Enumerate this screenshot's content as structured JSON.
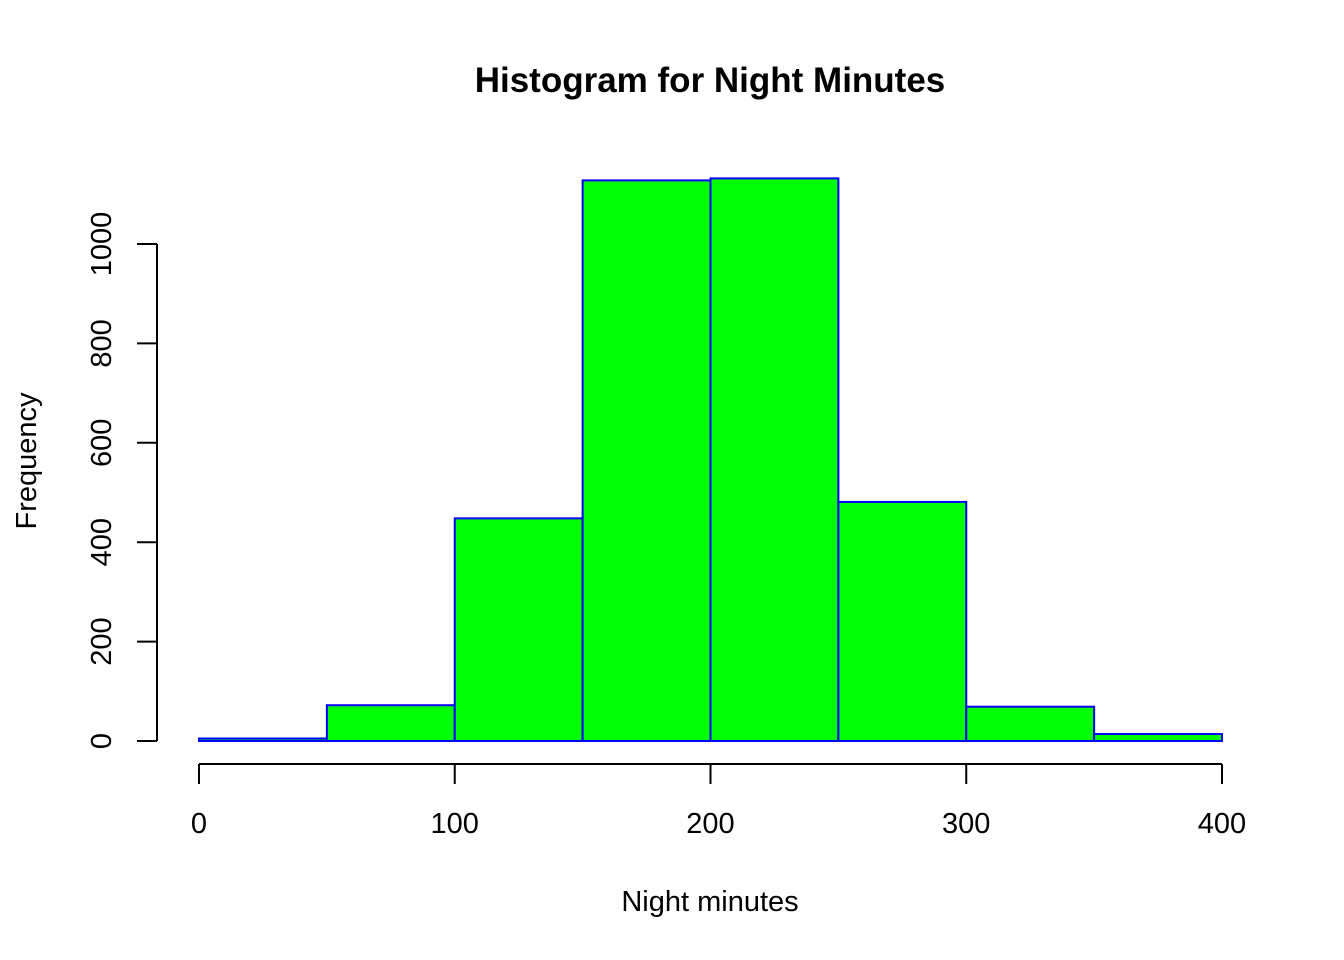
{
  "chart_data": {
    "type": "bar",
    "title": "Histogram for Night Minutes",
    "xlabel": "Night minutes",
    "ylabel": "Frequency",
    "bin_edges": [
      0,
      50,
      100,
      150,
      200,
      250,
      300,
      350,
      400
    ],
    "values": [
      5,
      72,
      448,
      1128,
      1132,
      481,
      69,
      14
    ],
    "xlim": [
      0,
      400
    ],
    "ylim": [
      0,
      1132
    ],
    "x_ticks": [
      0,
      100,
      200,
      300,
      400
    ],
    "y_ticks": [
      0,
      200,
      400,
      600,
      800,
      1000
    ],
    "bar_fill": "#00ff00",
    "bar_border": "#0000ff",
    "grid": false,
    "legend": "none"
  }
}
